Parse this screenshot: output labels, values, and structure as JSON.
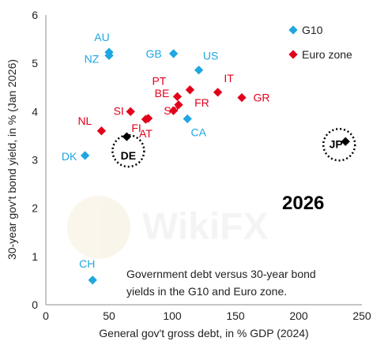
{
  "chart_data": {
    "type": "scatter",
    "title": "",
    "xlabel": "General gov't gross debt, in % GDP (2024)",
    "ylabel": "30-year gov't bond yield, in % (Jan 2026)",
    "xlim": [
      0,
      250
    ],
    "ylim": [
      0,
      6
    ],
    "xticks": [
      0,
      50,
      100,
      150,
      200,
      250
    ],
    "yticks": [
      0,
      1,
      2,
      3,
      4,
      5,
      6
    ],
    "grid": false,
    "legend_position": "top-right",
    "series": [
      {
        "name": "G10",
        "color": "#1ea7e1",
        "marker": "diamond",
        "points": [
          {
            "label": "AU",
            "x": 50,
            "y": 5.23
          },
          {
            "label": "NZ",
            "x": 50,
            "y": 5.16
          },
          {
            "label": "GB",
            "x": 101,
            "y": 5.2
          },
          {
            "label": "US",
            "x": 121,
            "y": 4.86
          },
          {
            "label": "CA",
            "x": 112,
            "y": 3.85
          },
          {
            "label": "DK",
            "x": 31,
            "y": 3.09
          },
          {
            "label": "CH",
            "x": 37,
            "y": 0.51
          },
          {
            "label": "",
            "x": 64,
            "y": 3.48
          },
          {
            "label": "",
            "x": 237,
            "y": 3.38
          }
        ]
      },
      {
        "name": "Euro zone",
        "color": "#e3001b",
        "marker": "diamond",
        "points": [
          {
            "label": "PT",
            "x": 104,
            "y": 4.31
          },
          {
            "label": "FR",
            "x": 114,
            "y": 4.45
          },
          {
            "label": "IT",
            "x": 136,
            "y": 4.4
          },
          {
            "label": "GR",
            "x": 155,
            "y": 4.29
          },
          {
            "label": "BE",
            "x": 105,
            "y": 4.14
          },
          {
            "label": "SP",
            "x": 101,
            "y": 4.02
          },
          {
            "label": "SI",
            "x": 67,
            "y": 4.0
          },
          {
            "label": "FI",
            "x": 81,
            "y": 3.86
          },
          {
            "label": "AT",
            "x": 79,
            "y": 3.84
          },
          {
            "label": "NL",
            "x": 44,
            "y": 3.6
          }
        ]
      }
    ],
    "highlighted": [
      {
        "label": "DE",
        "x": 64,
        "y": 3.48
      },
      {
        "label": "JP",
        "x": 237,
        "y": 3.38
      }
    ],
    "annotations": {
      "year": "2026",
      "note_line1": "Government debt versus 30-year bond",
      "note_line2": "yields in the G10 and Euro zone."
    }
  },
  "colors": {
    "g10": "#1ea7e1",
    "eurozone": "#e3001b",
    "highlight": "#000000"
  }
}
